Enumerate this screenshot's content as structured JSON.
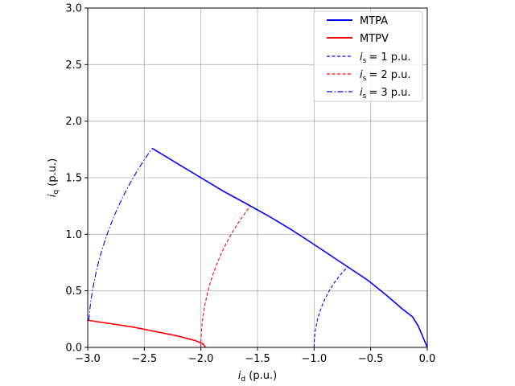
{
  "chart_data": {
    "type": "line",
    "xlim": [
      -3.0,
      0.0
    ],
    "ylim": [
      0.0,
      3.0
    ],
    "xticks": [
      "−3.0",
      "−2.5",
      "−2.0",
      "−1.5",
      "−1.0",
      "−0.5",
      "0.0"
    ],
    "xtick_values": [
      -3.0,
      -2.5,
      -2.0,
      -1.5,
      -1.0,
      -0.5,
      0.0
    ],
    "yticks": [
      "0.0",
      "0.5",
      "1.0",
      "1.5",
      "2.0",
      "2.5",
      "3.0"
    ],
    "ytick_values": [
      0.0,
      0.5,
      1.0,
      1.5,
      2.0,
      2.5,
      3.0
    ],
    "xlabel": {
      "symbol": "i",
      "sub": "d",
      "unit": " (p.u.)"
    },
    "ylabel": {
      "symbol": "i",
      "sub": "q",
      "unit": " (p.u.)"
    },
    "grid": true,
    "legend_position": "top-right",
    "series": [
      {
        "name": "MTPA",
        "legend": {
          "text": "MTPA"
        },
        "color": "#0000ff",
        "style": "solid",
        "x": [
          0.0,
          -0.08,
          -0.13,
          -0.22,
          -0.36,
          -0.52,
          -0.7,
          -1.0,
          -1.2,
          -1.4,
          -1.58,
          -1.8,
          -2.0,
          -2.2,
          -2.43
        ],
        "y": [
          0.0,
          0.19,
          0.27,
          0.34,
          0.46,
          0.59,
          0.71,
          0.91,
          1.04,
          1.16,
          1.26,
          1.38,
          1.5,
          1.62,
          1.76
        ]
      },
      {
        "name": "MTPV",
        "legend": {
          "text": "MTPV"
        },
        "color": "#ff0000",
        "style": "solid",
        "x": [
          -3.0,
          -2.8,
          -2.6,
          -2.4,
          -2.2,
          -2.05,
          -1.98,
          -1.96
        ],
        "y": [
          0.24,
          0.21,
          0.18,
          0.14,
          0.1,
          0.06,
          0.03,
          0.0
        ]
      },
      {
        "name": "is = 1 p.u.",
        "legend": {
          "symbol": "i",
          "sub": "s",
          "text": "=  1 p.u."
        },
        "color": "#0000ff",
        "style": "dashed",
        "circle": {
          "radius": 1.0,
          "theta_start_deg": 0,
          "theta_end_deg": 45.3
        }
      },
      {
        "name": "is = 2 p.u.",
        "legend": {
          "symbol": "i",
          "sub": "s",
          "text": "=  2 p.u."
        },
        "color": "#ff0000",
        "style": "dashed",
        "circle": {
          "radius": 2.0,
          "theta_start_deg": 0,
          "theta_end_deg": 38.5
        }
      },
      {
        "name": "is = 3 p.u.",
        "legend": {
          "symbol": "i",
          "sub": "s",
          "text": "=  3 p.u."
        },
        "color": "#0000ff",
        "style": "dashdot",
        "circle": {
          "radius": 3.0,
          "theta_start_deg": 4.6,
          "theta_end_deg": 35.9
        }
      }
    ]
  }
}
